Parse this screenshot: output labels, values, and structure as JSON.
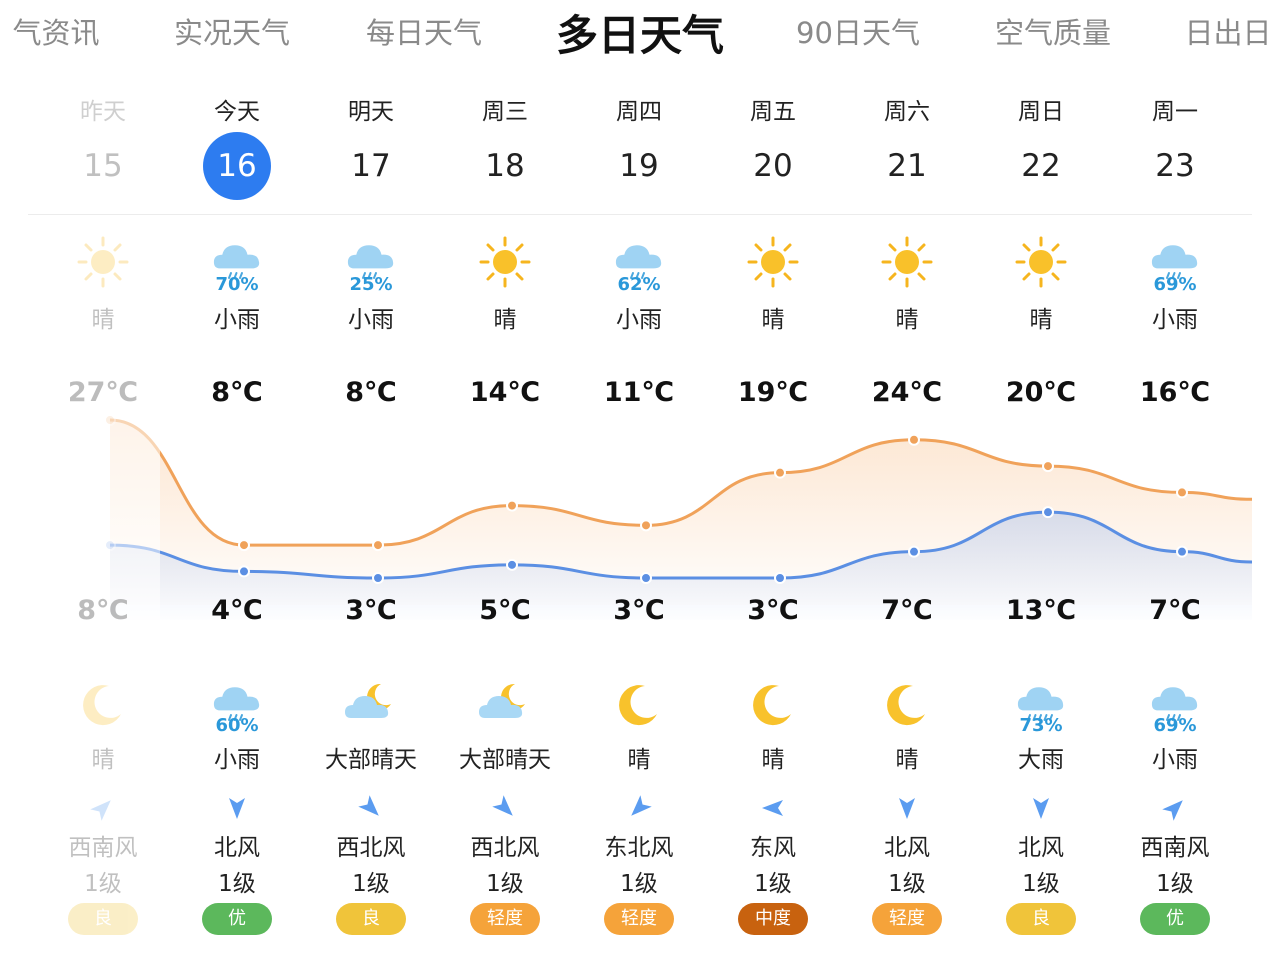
{
  "tabs": [
    {
      "label": "气资讯",
      "active": false
    },
    {
      "label": "实况天气",
      "active": false
    },
    {
      "label": "每日天气",
      "active": false
    },
    {
      "label": "多日天气",
      "active": true
    },
    {
      "label": "90日天气",
      "active": false
    },
    {
      "label": "空气质量",
      "active": false
    },
    {
      "label": "日出日",
      "active": false
    }
  ],
  "days": [
    {
      "weekday": "昨天",
      "date": "15",
      "day_icon": "sun-icon",
      "day_pop": "",
      "day_desc": "晴",
      "high": "27℃",
      "low": "8℃",
      "night_icon": "moon-icon",
      "night_pop": "",
      "night_desc": "晴",
      "wind_dir": "西南风",
      "wind_level": "1级",
      "aqi": "良"
    },
    {
      "weekday": "今天",
      "date": "16",
      "day_icon": "light-rain-icon",
      "day_pop": "70%",
      "day_desc": "小雨",
      "high": "8℃",
      "low": "4℃",
      "night_icon": "light-rain-icon",
      "night_pop": "60%",
      "night_desc": "小雨",
      "wind_dir": "北风",
      "wind_level": "1级",
      "aqi": "优"
    },
    {
      "weekday": "明天",
      "date": "17",
      "day_icon": "light-rain-icon",
      "day_pop": "25%",
      "day_desc": "小雨",
      "high": "8℃",
      "low": "3℃",
      "night_icon": "moon-cloud-icon",
      "night_pop": "",
      "night_desc": "大部晴天",
      "wind_dir": "西北风",
      "wind_level": "1级",
      "aqi": "良"
    },
    {
      "weekday": "周三",
      "date": "18",
      "day_icon": "sun-icon",
      "day_pop": "",
      "day_desc": "晴",
      "high": "14℃",
      "low": "5℃",
      "night_icon": "moon-cloud-icon",
      "night_pop": "",
      "night_desc": "大部晴天",
      "wind_dir": "西北风",
      "wind_level": "1级",
      "aqi": "轻度"
    },
    {
      "weekday": "周四",
      "date": "19",
      "day_icon": "light-rain-icon",
      "day_pop": "62%",
      "day_desc": "小雨",
      "high": "11℃",
      "low": "3℃",
      "night_icon": "moon-icon",
      "night_pop": "",
      "night_desc": "晴",
      "wind_dir": "东北风",
      "wind_level": "1级",
      "aqi": "轻度"
    },
    {
      "weekday": "周五",
      "date": "20",
      "day_icon": "sun-icon",
      "day_pop": "",
      "day_desc": "晴",
      "high": "19℃",
      "low": "3℃",
      "night_icon": "moon-icon",
      "night_pop": "",
      "night_desc": "晴",
      "wind_dir": "东风",
      "wind_level": "1级",
      "aqi": "中度"
    },
    {
      "weekday": "周六",
      "date": "21",
      "day_icon": "sun-icon",
      "day_pop": "",
      "day_desc": "晴",
      "high": "24℃",
      "low": "7℃",
      "night_icon": "moon-icon",
      "night_pop": "",
      "night_desc": "晴",
      "wind_dir": "北风",
      "wind_level": "1级",
      "aqi": "轻度"
    },
    {
      "weekday": "周日",
      "date": "22",
      "day_icon": "sun-icon",
      "day_pop": "",
      "day_desc": "晴",
      "high": "20℃",
      "low": "13℃",
      "night_icon": "heavy-rain-icon",
      "night_pop": "73%",
      "night_desc": "大雨",
      "wind_dir": "北风",
      "wind_level": "1级",
      "aqi": "良"
    },
    {
      "weekday": "周一",
      "date": "23",
      "day_icon": "light-rain-icon",
      "day_pop": "69%",
      "day_desc": "小雨",
      "high": "16℃",
      "low": "7℃",
      "night_icon": "light-rain-icon",
      "night_pop": "69%",
      "night_desc": "小雨",
      "wind_dir": "西南风",
      "wind_level": "1级",
      "aqi": "优"
    }
  ],
  "colors": {
    "accent": "#2d7cf0",
    "high_line": "#f0a25a",
    "low_line": "#5b8fe3",
    "aqi_good": "#5cb85c",
    "aqi_moderate": "#f0c43a",
    "aqi_light": "#f5a33a",
    "aqi_medium": "#c8620f"
  },
  "chart_data": {
    "type": "line",
    "x": [
      "15",
      "16",
      "17",
      "18",
      "19",
      "20",
      "21",
      "22",
      "23"
    ],
    "series": [
      {
        "values": [
          27,
          8,
          8,
          14,
          11,
          19,
          24,
          20,
          16
        ]
      },
      {
        "values": [
          8,
          4,
          3,
          5,
          3,
          3,
          7,
          13,
          7
        ]
      }
    ]
  }
}
